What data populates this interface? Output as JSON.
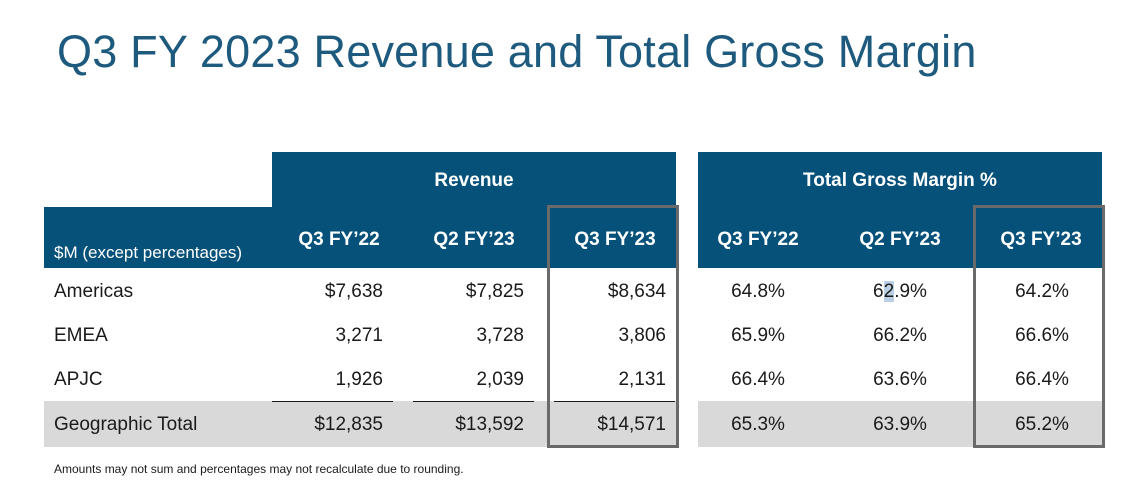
{
  "title": "Q3 FY 2023 Revenue and Total Gross Margin",
  "units_label": "$M (except percentages)",
  "groups": {
    "revenue": "Revenue",
    "margin": "Total Gross Margin %"
  },
  "columns": [
    "Q3 FY’22",
    "Q2 FY’23",
    "Q3 FY’23",
    "Q3 FY’22",
    "Q2 FY’23",
    "Q3 FY’23"
  ],
  "rows": [
    {
      "label": "Americas",
      "revenue": [
        "$7,638",
        "$7,825",
        "$8,634"
      ],
      "margin": [
        "64.8%",
        "62.9%",
        "64.2%"
      ]
    },
    {
      "label": "EMEA",
      "revenue": [
        "3,271",
        "3,728",
        "3,806"
      ],
      "margin": [
        "65.9%",
        "66.2%",
        "66.6%"
      ]
    },
    {
      "label": "APJC",
      "revenue": [
        "1,926",
        "2,039",
        "2,131"
      ],
      "margin": [
        "66.4%",
        "63.6%",
        "66.4%"
      ]
    },
    {
      "label": "Geographic Total",
      "revenue": [
        "$12,835",
        "$13,592",
        "$14,571"
      ],
      "margin": [
        "65.3%",
        "63.9%",
        "65.2%"
      ]
    }
  ],
  "footnote": "Amounts may not sum and percentages may not recalculate due to rounding.",
  "colors": {
    "header_band": "#06517a",
    "title": "#1d5a7d",
    "total_row": "#d9d9d9",
    "highlight_border": "#6a6a6a"
  }
}
